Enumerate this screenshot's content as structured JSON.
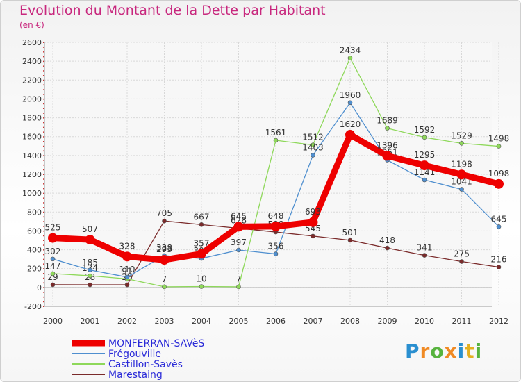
{
  "title": "Evolution du Montant de la Dette par Habitant",
  "subtitle": "(en €)",
  "brand": {
    "text": "Proxiti",
    "colors": [
      "#2a8fd0",
      "#f08a24",
      "#57b33e",
      "#f08a24",
      "#2a8fd0",
      "#e4b020",
      "#57b33e"
    ]
  },
  "chart_data": {
    "type": "line",
    "x": [
      "2000",
      "2001",
      "2002",
      "2003",
      "2004",
      "2005",
      "2006",
      "2007",
      "2008",
      "2009",
      "2010",
      "2011",
      "2012"
    ],
    "ylim": [
      -200,
      2600
    ],
    "yticks": [
      "-200",
      "0",
      "200",
      "400",
      "600",
      "800",
      "1000",
      "1200",
      "1400",
      "1600",
      "1800",
      "2000",
      "2200",
      "2400",
      "2600"
    ],
    "grid": true,
    "legend_position": "bottom-left",
    "series": [
      {
        "name": "MONFERRAN-SAVèS",
        "color": "#ee0000",
        "values": [
          525,
          507,
          328,
          293,
          357,
          645,
          648,
          693,
          1620,
          1396,
          1295,
          1198,
          1098
        ]
      },
      {
        "name": "Frégouville",
        "color": "#4f8fcf",
        "values": [
          302,
          185,
          110,
          338,
          308,
          397,
          356,
          1403,
          1960,
          1351,
          1141,
          1041,
          645
        ]
      },
      {
        "name": "Castillon-Savès",
        "color": "#8ed85a",
        "values": [
          147,
          124,
          91,
          7,
          10,
          7,
          1561,
          1512,
          2434,
          1689,
          1592,
          1529,
          1498
        ]
      },
      {
        "name": "Marestaing",
        "color": "#7a2a2a",
        "values": [
          29,
          28,
          28,
          705,
          667,
          628,
          588,
          545,
          501,
          418,
          341,
          275,
          216
        ]
      }
    ]
  }
}
